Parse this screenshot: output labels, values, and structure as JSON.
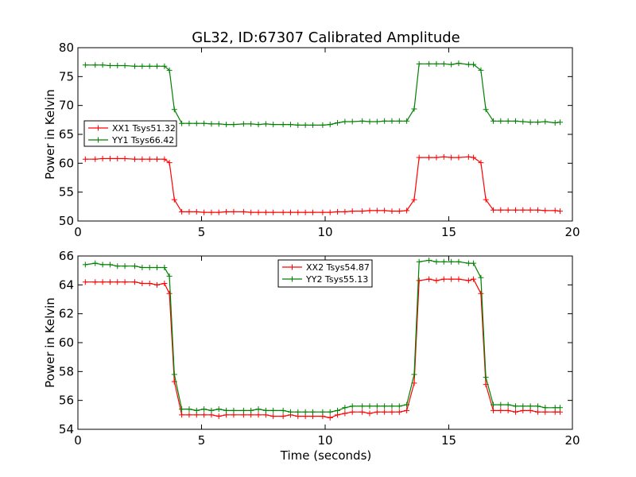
{
  "figure": {
    "title": "GL32, ID:67307 Calibrated Amplitude",
    "xlabel": "Time (seconds)"
  },
  "colors": {
    "XX": "#ff0000",
    "YY": "#008000"
  },
  "chart_data": [
    {
      "type": "line",
      "title": "GL32, ID:67307 Calibrated Amplitude",
      "xlabel": "",
      "ylabel": "Power in Kelvin",
      "xlim": [
        0,
        20
      ],
      "ylim": [
        50,
        80
      ],
      "xticks": [
        0,
        5,
        10,
        15,
        20
      ],
      "yticks": [
        50,
        55,
        60,
        65,
        70,
        75,
        80
      ],
      "legend": "center-left",
      "x": [
        0.3,
        0.7,
        1.0,
        1.3,
        1.6,
        1.9,
        2.3,
        2.6,
        2.9,
        3.2,
        3.5,
        3.7,
        3.9,
        4.2,
        4.5,
        4.8,
        5.1,
        5.4,
        5.7,
        6.0,
        6.3,
        6.7,
        7.0,
        7.3,
        7.6,
        7.9,
        8.3,
        8.6,
        8.9,
        9.2,
        9.5,
        9.9,
        10.2,
        10.5,
        10.8,
        11.1,
        11.5,
        11.8,
        12.1,
        12.4,
        12.7,
        13.0,
        13.3,
        13.6,
        13.8,
        14.2,
        14.5,
        14.8,
        15.1,
        15.4,
        15.8,
        16.0,
        16.3,
        16.5,
        16.8,
        17.1,
        17.4,
        17.7,
        18.0,
        18.3,
        18.6,
        18.9,
        19.3,
        19.5
      ],
      "series": [
        {
          "name": "XX1 Tsys51.32",
          "color": "#ff0000",
          "values": [
            60.7,
            60.7,
            60.8,
            60.8,
            60.8,
            60.8,
            60.7,
            60.7,
            60.7,
            60.7,
            60.7,
            60.1,
            53.7,
            51.6,
            51.6,
            51.6,
            51.5,
            51.5,
            51.5,
            51.6,
            51.6,
            51.6,
            51.5,
            51.5,
            51.5,
            51.5,
            51.5,
            51.5,
            51.5,
            51.5,
            51.5,
            51.5,
            51.5,
            51.6,
            51.6,
            51.7,
            51.7,
            51.8,
            51.8,
            51.8,
            51.7,
            51.7,
            51.8,
            53.7,
            61.0,
            61.0,
            61.0,
            61.1,
            61.0,
            61.0,
            61.1,
            61.0,
            60.1,
            53.7,
            51.9,
            51.9,
            51.9,
            51.9,
            51.9,
            51.9,
            51.9,
            51.8,
            51.8,
            51.7
          ]
        },
        {
          "name": "YY1 Tsys66.42",
          "color": "#008000",
          "values": [
            77.0,
            77.0,
            77.0,
            76.9,
            76.9,
            76.9,
            76.8,
            76.8,
            76.8,
            76.8,
            76.8,
            76.1,
            69.3,
            66.9,
            66.9,
            66.9,
            66.9,
            66.8,
            66.8,
            66.7,
            66.7,
            66.8,
            66.8,
            66.7,
            66.8,
            66.7,
            66.7,
            66.7,
            66.6,
            66.6,
            66.6,
            66.6,
            66.7,
            67.0,
            67.2,
            67.2,
            67.3,
            67.2,
            67.2,
            67.3,
            67.3,
            67.3,
            67.3,
            69.4,
            77.2,
            77.2,
            77.2,
            77.2,
            77.1,
            77.3,
            77.1,
            77.1,
            76.1,
            69.3,
            67.3,
            67.3,
            67.3,
            67.3,
            67.2,
            67.1,
            67.1,
            67.2,
            67.0,
            67.1
          ]
        }
      ]
    },
    {
      "type": "line",
      "title": "",
      "xlabel": "Time (seconds)",
      "ylabel": "Power in Kelvin",
      "xlim": [
        0,
        20
      ],
      "ylim": [
        54,
        66
      ],
      "xticks": [
        0,
        5,
        10,
        15,
        20
      ],
      "yticks": [
        54,
        56,
        58,
        60,
        62,
        64,
        66
      ],
      "legend": "top-center",
      "x": [
        0.3,
        0.7,
        1.0,
        1.3,
        1.6,
        1.9,
        2.3,
        2.6,
        2.9,
        3.2,
        3.5,
        3.7,
        3.9,
        4.2,
        4.5,
        4.8,
        5.1,
        5.4,
        5.7,
        6.0,
        6.3,
        6.7,
        7.0,
        7.3,
        7.6,
        7.9,
        8.3,
        8.6,
        8.9,
        9.2,
        9.5,
        9.9,
        10.2,
        10.5,
        10.8,
        11.1,
        11.5,
        11.8,
        12.1,
        12.4,
        12.7,
        13.0,
        13.3,
        13.6,
        13.8,
        14.2,
        14.5,
        14.8,
        15.1,
        15.4,
        15.8,
        16.0,
        16.3,
        16.5,
        16.8,
        17.1,
        17.4,
        17.7,
        18.0,
        18.3,
        18.6,
        18.9,
        19.3,
        19.5
      ],
      "series": [
        {
          "name": "XX2 Tsys54.87",
          "color": "#ff0000",
          "values": [
            64.2,
            64.2,
            64.2,
            64.2,
            64.2,
            64.2,
            64.2,
            64.1,
            64.1,
            64.0,
            64.1,
            63.4,
            57.3,
            55.0,
            55.0,
            55.0,
            55.0,
            55.0,
            54.9,
            55.0,
            55.0,
            55.0,
            55.0,
            55.0,
            55.0,
            54.9,
            54.9,
            55.0,
            54.9,
            54.9,
            54.9,
            54.9,
            54.8,
            55.0,
            55.1,
            55.2,
            55.2,
            55.1,
            55.2,
            55.2,
            55.2,
            55.2,
            55.3,
            57.2,
            64.3,
            64.4,
            64.3,
            64.4,
            64.4,
            64.4,
            64.3,
            64.4,
            63.4,
            57.1,
            55.3,
            55.3,
            55.3,
            55.2,
            55.3,
            55.3,
            55.2,
            55.2,
            55.2,
            55.2
          ]
        },
        {
          "name": "YY2 Tsys55.13",
          "color": "#008000",
          "values": [
            65.4,
            65.5,
            65.4,
            65.4,
            65.3,
            65.3,
            65.3,
            65.2,
            65.2,
            65.2,
            65.2,
            64.6,
            57.8,
            55.4,
            55.4,
            55.3,
            55.4,
            55.3,
            55.4,
            55.3,
            55.3,
            55.3,
            55.3,
            55.4,
            55.3,
            55.3,
            55.3,
            55.2,
            55.2,
            55.2,
            55.2,
            55.2,
            55.2,
            55.3,
            55.5,
            55.6,
            55.6,
            55.6,
            55.6,
            55.6,
            55.6,
            55.6,
            55.7,
            57.8,
            65.6,
            65.7,
            65.6,
            65.6,
            65.6,
            65.6,
            65.5,
            65.5,
            64.5,
            57.6,
            55.7,
            55.7,
            55.7,
            55.6,
            55.6,
            55.6,
            55.6,
            55.5,
            55.5,
            55.5
          ]
        }
      ]
    }
  ]
}
